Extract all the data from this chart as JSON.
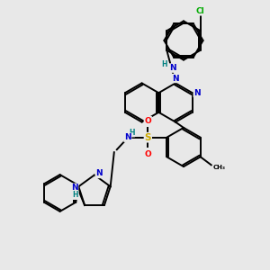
{
  "background_color": "#e8e8e8",
  "figsize": [
    3.0,
    3.0
  ],
  "dpi": 100,
  "atom_colors": {
    "N": "#0000cc",
    "O": "#ff0000",
    "S": "#ccaa00",
    "Cl": "#00aa00",
    "C": "#000000",
    "H": "#008080"
  },
  "bond_color": "#000000",
  "bond_width": 1.4,
  "font_size": 6.5,
  "xlim": [
    0,
    10
  ],
  "ylim": [
    0,
    10
  ]
}
